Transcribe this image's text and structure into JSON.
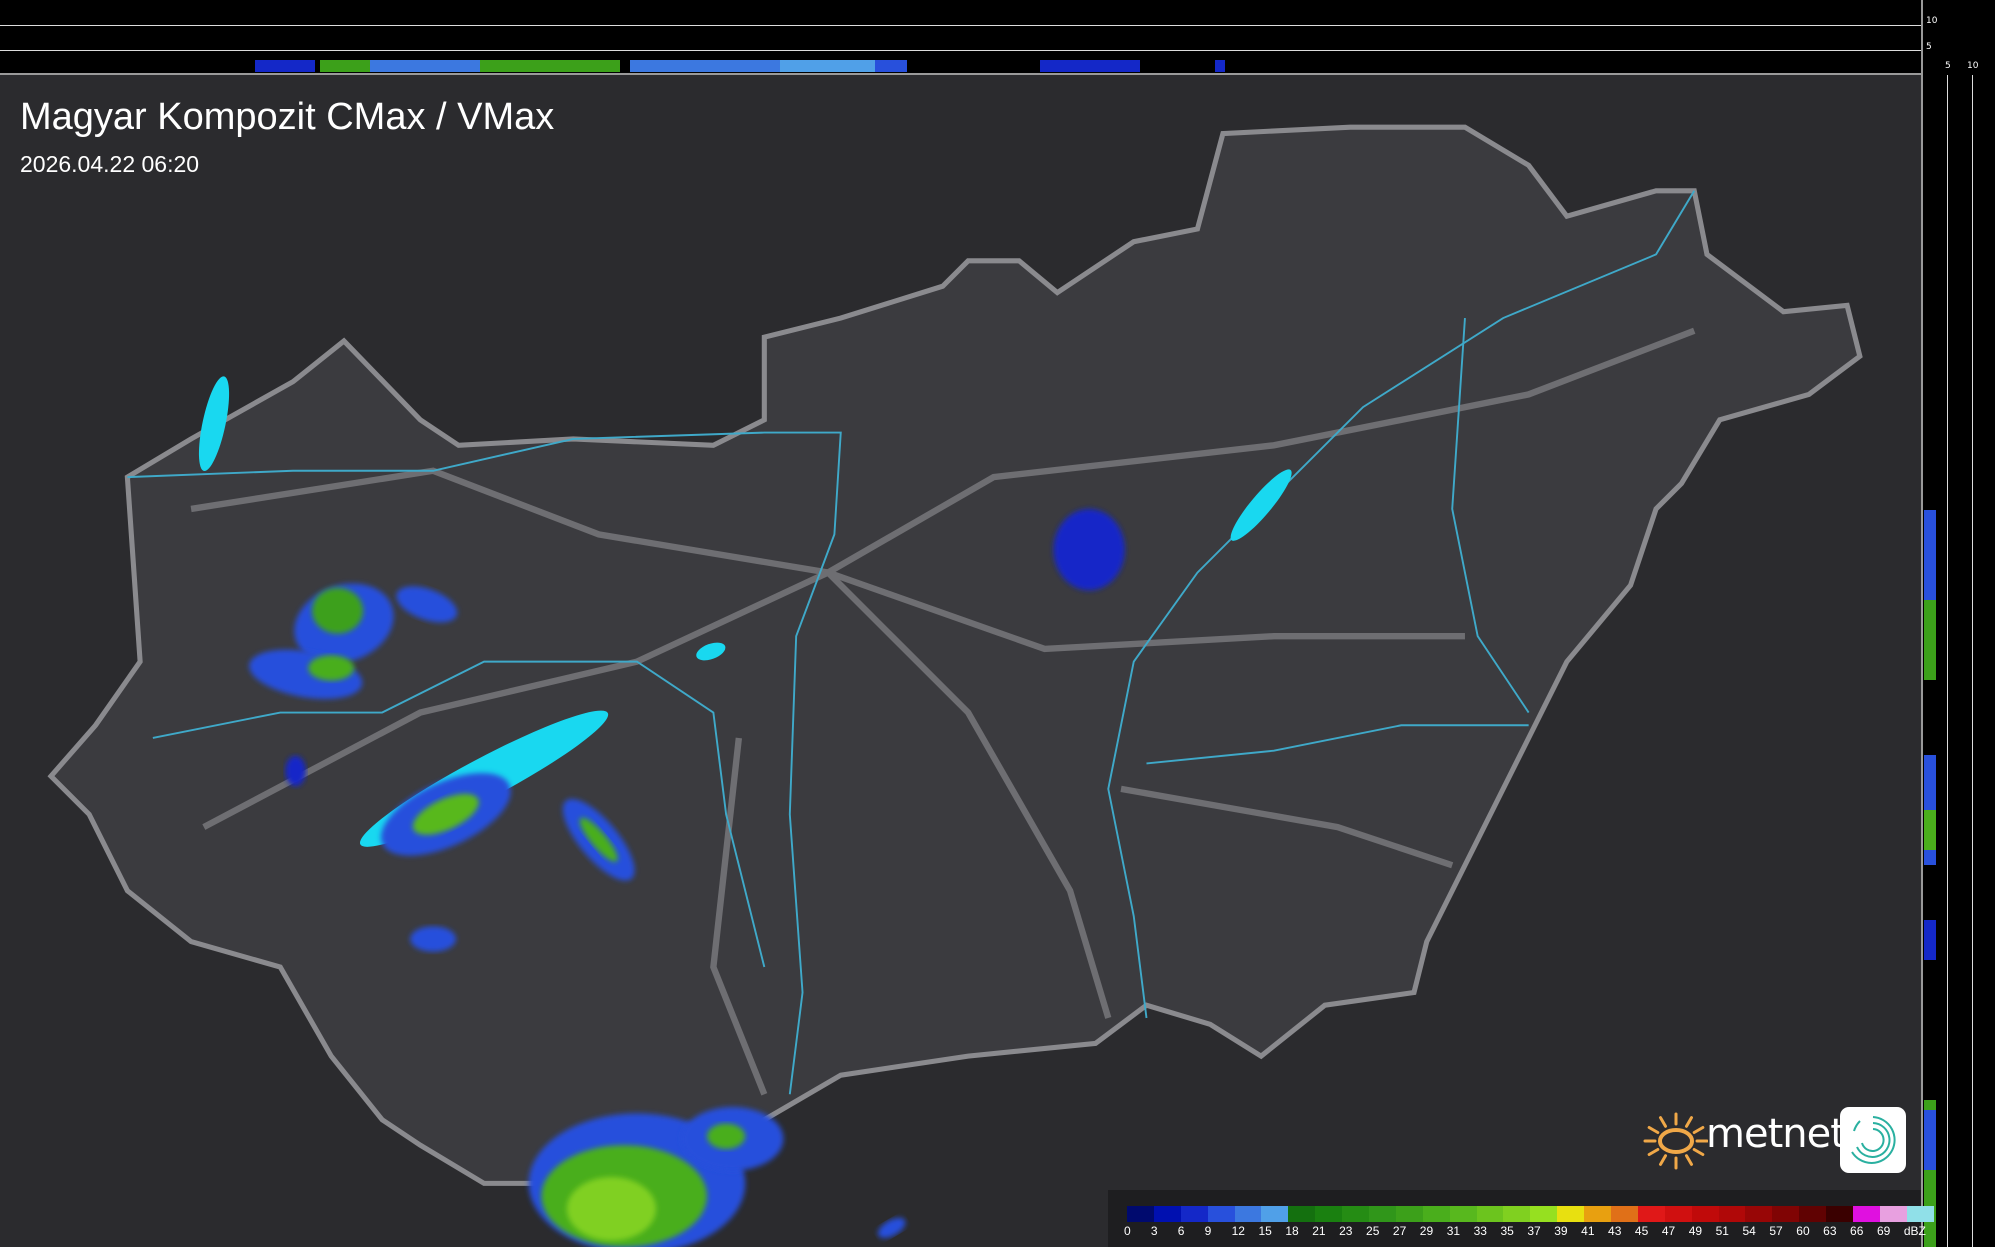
{
  "title": "Magyar Kompozit CMax / VMax",
  "timestamp": "2026.04.22 06:20",
  "profile_axes": {
    "top_labels": [
      "10",
      "5"
    ],
    "right_labels": [
      "5",
      "10"
    ]
  },
  "legend": {
    "unit": "dBZ",
    "labels": [
      "0",
      "3",
      "6",
      "9",
      "12",
      "15",
      "18",
      "21",
      "23",
      "25",
      "27",
      "29",
      "31",
      "33",
      "35",
      "37",
      "39",
      "41",
      "43",
      "45",
      "47",
      "49",
      "51",
      "54",
      "57",
      "60",
      "63",
      "66",
      "69"
    ],
    "colors": [
      "#000a6e",
      "#0010b0",
      "#1428c8",
      "#2850dc",
      "#3c78e0",
      "#50a0e8",
      "#14700f",
      "#1a8010",
      "#258c14",
      "#30961a",
      "#3ca01a",
      "#4aae1c",
      "#58b81e",
      "#6cc41e",
      "#80d020",
      "#96e020",
      "#e8e010",
      "#e8a010",
      "#e07018",
      "#e01818",
      "#d01010",
      "#c00a0a",
      "#b00808",
      "#980606",
      "#800404",
      "#600202",
      "#3a0000",
      "#e010e0",
      "#e8a0e0",
      "#90e0e8"
    ]
  },
  "branding": {
    "logo_text": "metnet",
    "sun_color": "#f0a848",
    "icon": "swirl-app-icon"
  },
  "colors": {
    "background": "#2b2b2e",
    "country_fill": "#3b3b3f",
    "border": "#8a8a8e",
    "rivers": "#3fa9c9",
    "lakes": "#19d8f0"
  }
}
